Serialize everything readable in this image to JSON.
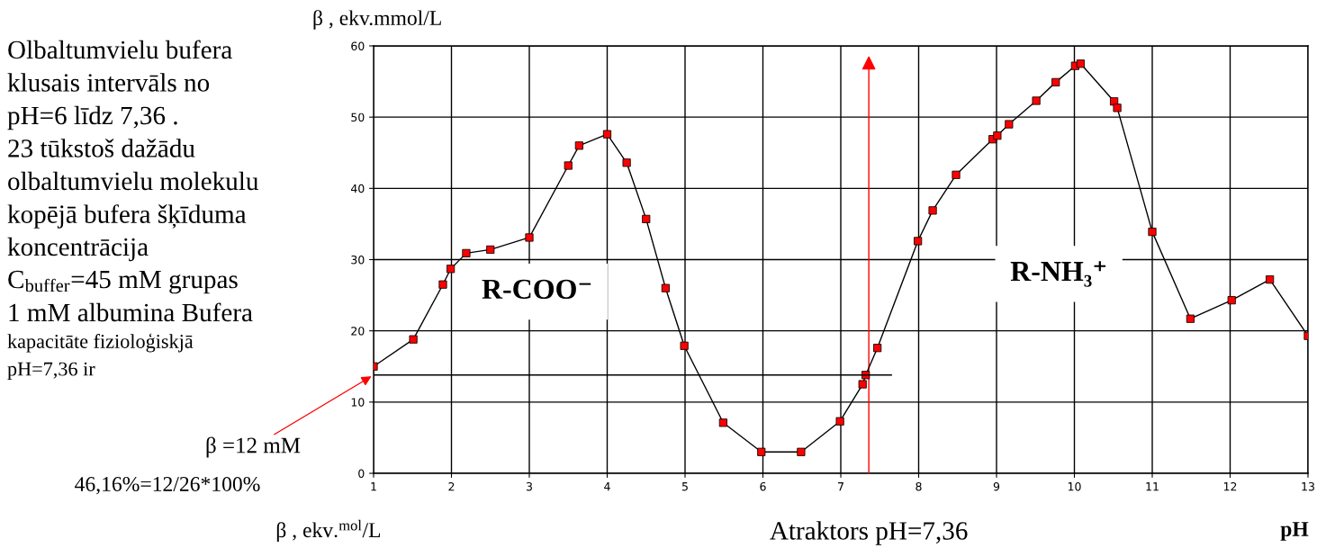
{
  "chart_data": {
    "type": "line",
    "xlabel": "pH",
    "ylabel": "β , ekv.mmol/L",
    "xlim": [
      1,
      13
    ],
    "xticks": [
      1,
      2,
      3,
      4,
      5,
      6,
      7,
      8,
      9,
      10,
      11,
      12,
      13
    ],
    "ylim": [
      0,
      60
    ],
    "yticks": [
      0,
      10,
      20,
      30,
      40,
      50,
      60
    ],
    "grid": true,
    "marker": "square",
    "line_style": "solid",
    "series": [
      {
        "color": "#ff0000",
        "x": [
          1.0,
          1.51,
          1.89,
          1.99,
          2.19,
          2.5,
          3.0,
          3.5,
          3.64,
          4.0,
          4.25,
          4.5,
          4.75,
          4.99,
          5.49,
          5.98,
          6.49,
          6.99,
          7.28,
          7.32,
          7.47,
          7.99,
          8.18,
          8.48,
          8.95,
          9.01,
          9.16,
          9.51,
          9.76,
          10.01,
          10.08,
          10.51,
          10.55,
          11.0,
          11.49,
          12.02,
          12.51,
          13.0
        ],
        "values": [
          15.0,
          18.8,
          26.5,
          28.7,
          30.9,
          31.4,
          33.1,
          43.2,
          46.0,
          47.6,
          43.6,
          35.7,
          26.0,
          17.9,
          7.1,
          3.0,
          3.0,
          7.3,
          12.5,
          13.8,
          17.6,
          32.6,
          36.9,
          41.9,
          46.9,
          47.4,
          49.0,
          52.3,
          54.9,
          57.2,
          57.5,
          52.2,
          51.3,
          33.9,
          21.7,
          24.3,
          27.2,
          19.3
        ]
      },
      {
        "color": "#000000",
        "marker": "none",
        "x": [
          1.0,
          7.65
        ],
        "values": [
          13.8,
          13.8
        ]
      }
    ],
    "ref_lines": [
      {
        "axis": "x",
        "value": 7.36,
        "label": "Atraktors pH=7,36",
        "color": "#ff0000"
      }
    ],
    "annotations": [
      "Olbaltumvielu bufera",
      "klusais intervāls no",
      "pH=6 līdz 7,36 .",
      "23 tūkstoš dažādu",
      "olbaltumvielu molekulu",
      "kopējā bufera šķīduma",
      "koncentrācija",
      "C$_{buffer}$=45 mM grupas",
      "1 mM albumina Bufera",
      "kapacitāte fizioloģiskjā",
      "pH=7,36 ir",
      {
        "text": "β =12 mM",
        "x": 1.0,
        "y": 13.8
      },
      "46,16%=12/26*100%",
      "R-COO⁻",
      "R-NH₃⁺",
      "β , ekv.$^{mol}$/L"
    ]
  }
}
